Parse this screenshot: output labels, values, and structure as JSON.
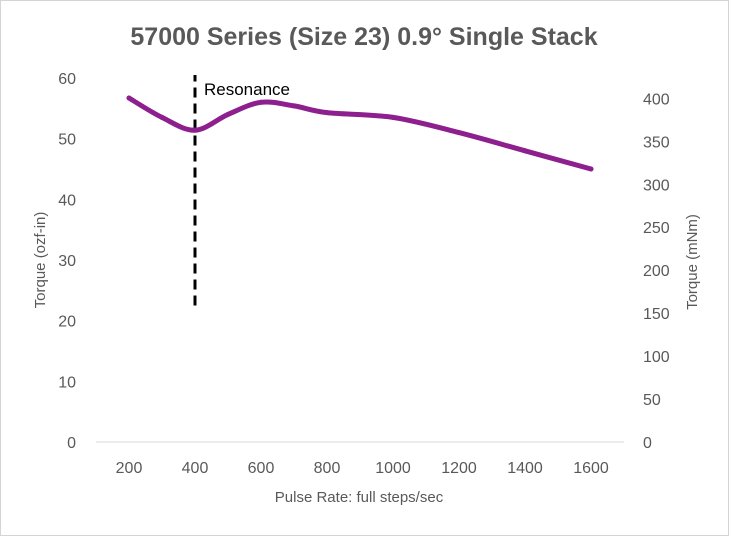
{
  "chart_data": {
    "type": "line",
    "title": "57000 Series (Size 23) 0.9° Single Stack",
    "xlabel": "Pulse Rate:  full steps/sec",
    "ylabel": "Torque (ozf-in)",
    "y2label": "Torque (mNm)",
    "x_ticks": [
      200,
      400,
      600,
      800,
      1000,
      1200,
      1400,
      1600
    ],
    "xlim": [
      100,
      1700
    ],
    "ylim": [
      0,
      60
    ],
    "y_ticks": [
      0,
      10,
      20,
      30,
      40,
      50,
      60
    ],
    "y2lim": [
      0,
      423.7
    ],
    "y2_ticks": [
      0,
      50,
      100,
      150,
      200,
      250,
      300,
      350,
      400
    ],
    "grid": false,
    "legend": "none",
    "series": [
      {
        "color": "#8e1f8e",
        "x": [
          200,
          300,
          400,
          500,
          600,
          700,
          800,
          1000,
          1200,
          1400,
          1600
        ],
        "y": [
          56.7,
          53.5,
          51.4,
          54.0,
          56.0,
          55.4,
          54.3,
          53.5,
          51.0,
          48.0,
          45.0
        ]
      }
    ],
    "annotations": [
      {
        "type": "vline",
        "x": 400,
        "y_from": 22.5,
        "y_to": 60.5,
        "style": "dashed",
        "color": "#000000",
        "text": "Resonance"
      }
    ]
  }
}
